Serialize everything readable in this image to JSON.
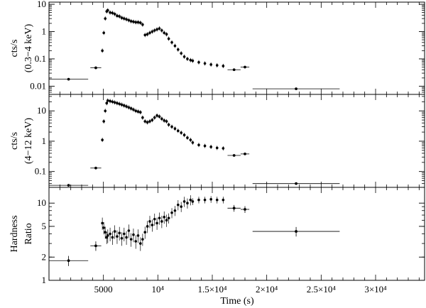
{
  "chart_data": {
    "type": "scatter",
    "shared_x": {
      "label": "Time  (s)",
      "range": [
        0,
        34500
      ],
      "ticks": [
        {
          "value": 5000,
          "label": "5000"
        },
        {
          "value": 10000,
          "label": "10⁴"
        },
        {
          "value": 15000,
          "label": "1.5×10⁴"
        },
        {
          "value": 20000,
          "label": "2×10⁴"
        },
        {
          "value": 25000,
          "label": "2.5×10⁴"
        },
        {
          "value": 30000,
          "label": "3×10⁴"
        }
      ]
    },
    "panels": [
      {
        "ylabel_line1": "cts/s",
        "ylabel_line2": "(0.3−4 keV)",
        "yscale": "log",
        "ylim": [
          0.005,
          12
        ],
        "yticks": [
          {
            "value": 0.01,
            "label": "0.01"
          },
          {
            "value": 0.1,
            "label": "0.1"
          },
          {
            "value": 1,
            "label": "1"
          },
          {
            "value": 10,
            "label": "10"
          }
        ],
        "binned": [
          {
            "x": 1800,
            "xerr": 1800,
            "y": 0.018
          },
          {
            "x": 4300,
            "xerr": 500,
            "y": 0.047
          },
          {
            "x": 17000,
            "xerr": 600,
            "y": 0.04
          },
          {
            "x": 18000,
            "xerr": 400,
            "y": 0.05
          },
          {
            "x": 22700,
            "xerr": 4000,
            "y": 0.008
          }
        ],
        "segments": [
          {
            "x_start": 4900,
            "x_end": 5300,
            "values": [
              0.2,
              0.9,
              3.0,
              5.5
            ]
          },
          {
            "x_start": 5400,
            "x_end": 8400,
            "values": [
              6.0,
              5.0,
              4.8,
              4.4,
              3.8,
              3.6,
              3.2,
              3.0,
              2.8,
              2.6,
              2.4,
              2.3,
              2.2,
              2.2,
              2.1
            ]
          },
          {
            "x_start": 8600,
            "x_end": 10800,
            "values": [
              1.8,
              0.75,
              0.8,
              0.9,
              1.0,
              1.1,
              1.2,
              1.3,
              1.1,
              0.9,
              0.8
            ]
          },
          {
            "x_start": 11000,
            "x_end": 13000,
            "values": [
              0.55,
              0.4,
              0.3,
              0.22,
              0.16,
              0.12,
              0.1,
              0.09
            ]
          },
          {
            "x_start": 13200,
            "x_end": 16000,
            "values": [
              0.085,
              0.075,
              0.068,
              0.062,
              0.058,
              0.055
            ]
          }
        ]
      },
      {
        "ylabel_line1": "cts/s",
        "ylabel_line2": "(4−12 keV)",
        "yscale": "log",
        "ylim": [
          0.03,
          35
        ],
        "yticks": [
          {
            "value": 0.1,
            "label": "0.1"
          },
          {
            "value": 1,
            "label": "1"
          },
          {
            "value": 10,
            "label": "10"
          }
        ],
        "binned": [
          {
            "x": 1800,
            "xerr": 1800,
            "y": 0.035
          },
          {
            "x": 4300,
            "xerr": 500,
            "y": 0.13
          },
          {
            "x": 17000,
            "xerr": 600,
            "y": 0.34
          },
          {
            "x": 18000,
            "xerr": 400,
            "y": 0.38
          },
          {
            "x": 22700,
            "xerr": 4000,
            "y": 0.04
          }
        ],
        "segments": [
          {
            "x_start": 4900,
            "x_end": 5300,
            "values": [
              1.1,
              4.5,
              10,
              18
            ]
          },
          {
            "x_start": 5400,
            "x_end": 8400,
            "values": [
              22,
              21,
              20,
              19,
              18,
              17,
              16,
              15,
              14,
              13,
              12,
              11,
              10,
              9.5,
              9
            ]
          },
          {
            "x_start": 8600,
            "x_end": 10800,
            "values": [
              6.0,
              4.5,
              4.2,
              4.5,
              5.0,
              6.0,
              7.0,
              6.5,
              5.5,
              4.8,
              4.5
            ]
          },
          {
            "x_start": 11000,
            "x_end": 13000,
            "values": [
              3.5,
              3.0,
              2.6,
              2.2,
              1.9,
              1.6,
              1.3,
              1.1
            ]
          },
          {
            "x_start": 13200,
            "x_end": 16000,
            "values": [
              0.9,
              0.75,
              0.7,
              0.65,
              0.6,
              0.58
            ]
          }
        ]
      },
      {
        "ylabel_line1": "Hardness",
        "ylabel_line2": "Ratio",
        "yscale": "log",
        "ylim": [
          1,
          16
        ],
        "yticks": [
          {
            "value": 1,
            "label": "1"
          },
          {
            "value": 2,
            "label": "2"
          },
          {
            "value": 5,
            "label": "5"
          },
          {
            "value": 10,
            "label": "10"
          }
        ],
        "binned": [
          {
            "x": 1800,
            "xerr": 1800,
            "y": 1.8,
            "yerr_frac": 0.15
          },
          {
            "x": 4300,
            "xerr": 500,
            "y": 2.8,
            "yerr_frac": 0.14
          },
          {
            "x": 17000,
            "xerr": 600,
            "y": 8.6,
            "yerr_frac": 0.1
          },
          {
            "x": 18000,
            "xerr": 400,
            "y": 8.3,
            "yerr_frac": 0.1
          },
          {
            "x": 22700,
            "xerr": 4000,
            "y": 4.3,
            "yerr_frac": 0.14
          }
        ],
        "segments": [
          {
            "x_start": 4900,
            "x_end": 5300,
            "values": [
              5.5,
              4.8,
              4.2,
              3.6
            ],
            "yerr_frac": 0.18
          },
          {
            "x_start": 5400,
            "x_end": 8400,
            "values": [
              3.8,
              4.0,
              3.6,
              4.3,
              3.7,
              4.1,
              3.5,
              4.0,
              3.6,
              4.4,
              3.4,
              3.9,
              3.2,
              3.8,
              3.0
            ],
            "yerr_frac": 0.2
          },
          {
            "x_start": 8600,
            "x_end": 10800,
            "values": [
              3.4,
              4.2,
              5.0,
              5.8,
              5.2,
              6.2,
              5.5,
              6.4,
              5.8,
              6.6,
              6.0
            ],
            "yerr_frac": 0.18
          },
          {
            "x_start": 11000,
            "x_end": 13000,
            "values": [
              6.4,
              7.5,
              8.0,
              9.5,
              9.0,
              10.5,
              10.0,
              11.0
            ],
            "yerr_frac": 0.15
          },
          {
            "x_start": 13200,
            "x_end": 16000,
            "values": [
              10.5,
              11.0,
              11.0,
              11.2,
              11.0,
              11.0
            ],
            "yerr_frac": 0.1
          }
        ]
      }
    ]
  }
}
